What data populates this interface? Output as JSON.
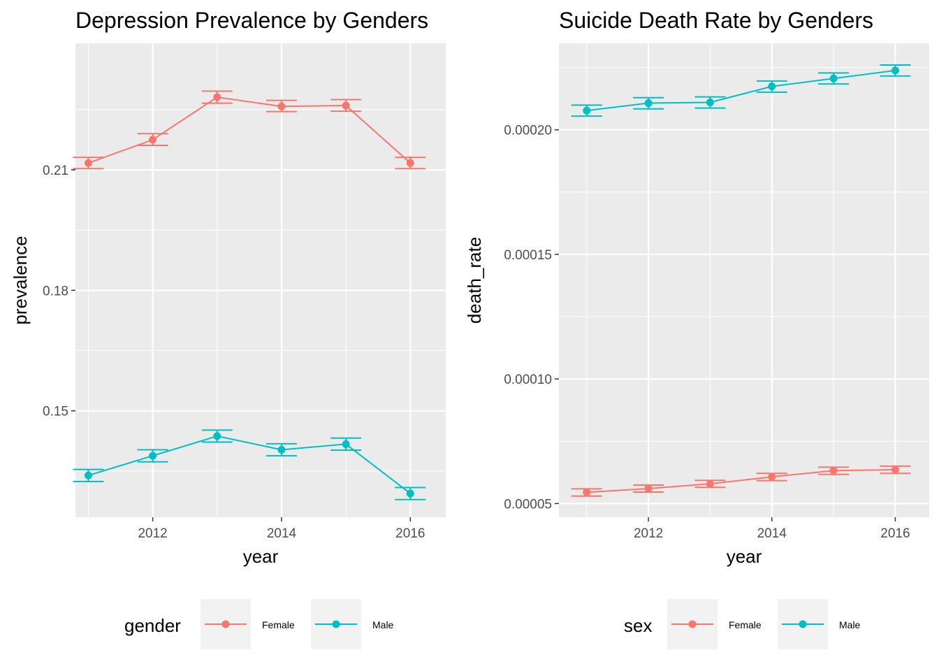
{
  "chart_data": [
    {
      "type": "line",
      "title": "Depression Prevalence by Genders",
      "xlabel": "year",
      "ylabel": "prevalence",
      "xlim": [
        2010.8,
        2016.55
      ],
      "ylim": [
        0.1235,
        0.2415
      ],
      "x_ticks": [
        2012,
        2014,
        2016
      ],
      "y_ticks": [
        0.15,
        0.18,
        0.21
      ],
      "y_tick_labels": [
        "0.15",
        "0.18",
        "0.21"
      ],
      "legend": {
        "title": "gender",
        "position": "bottom"
      },
      "grid": true,
      "error_bars": true,
      "series": [
        {
          "name": "Female",
          "color": "#F8766D",
          "x": [
            2011,
            2012,
            2013,
            2014,
            2015,
            2016
          ],
          "y": [
            0.2117,
            0.2175,
            0.2281,
            0.2258,
            0.226,
            0.2117
          ],
          "ymin": [
            0.2103,
            0.2161,
            0.2266,
            0.2245,
            0.2246,
            0.2103
          ],
          "ymax": [
            0.2131,
            0.219,
            0.2296,
            0.2273,
            0.2275,
            0.2131
          ]
        },
        {
          "name": "Male",
          "color": "#00BFC4",
          "x": [
            2011,
            2012,
            2013,
            2014,
            2015,
            2016
          ],
          "y": [
            0.1339,
            0.1388,
            0.1437,
            0.1403,
            0.1417,
            0.1294
          ],
          "ymin": [
            0.1324,
            0.1373,
            0.1422,
            0.1388,
            0.1402,
            0.1279
          ],
          "ymax": [
            0.1354,
            0.1403,
            0.1452,
            0.1418,
            0.1432,
            0.1309
          ]
        }
      ]
    },
    {
      "type": "line",
      "title": "Suicide Death Rate by Genders",
      "xlabel": "year",
      "ylabel": "death_rate",
      "xlim": [
        2010.55,
        2016.55
      ],
      "ylim": [
        4.45e-05,
        0.0002347
      ],
      "x_ticks": [
        2012,
        2014,
        2016
      ],
      "y_ticks": [
        5e-05,
        0.0001,
        0.00015,
        0.0002
      ],
      "y_tick_labels": [
        "0.00005",
        "0.00010",
        "0.00015",
        "0.00020"
      ],
      "legend": {
        "title": "sex",
        "position": "bottom"
      },
      "grid": true,
      "error_bars": true,
      "series": [
        {
          "name": "Female",
          "color": "#F8766D",
          "x": [
            2011,
            2012,
            2013,
            2014,
            2015,
            2016
          ],
          "y": [
            5.45e-05,
            5.6e-05,
            5.79e-05,
            6.07e-05,
            6.32e-05,
            6.36e-05
          ],
          "ymin": [
            5.3e-05,
            5.46e-05,
            5.65e-05,
            5.92e-05,
            6.17e-05,
            6.21e-05
          ],
          "ymax": [
            5.59e-05,
            5.74e-05,
            5.93e-05,
            6.21e-05,
            6.46e-05,
            6.5e-05
          ]
        },
        {
          "name": "Male",
          "color": "#00BFC4",
          "x": [
            2011,
            2012,
            2013,
            2014,
            2015,
            2016
          ],
          "y": [
            0.0002077,
            0.0002107,
            0.000211,
            0.0002174,
            0.0002206,
            0.0002238
          ],
          "ymin": [
            0.0002055,
            0.0002084,
            0.0002087,
            0.0002151,
            0.0002184,
            0.0002216
          ],
          "ymax": [
            0.0002099,
            0.0002129,
            0.0002132,
            0.0002196,
            0.0002228,
            0.000226
          ]
        }
      ]
    }
  ]
}
